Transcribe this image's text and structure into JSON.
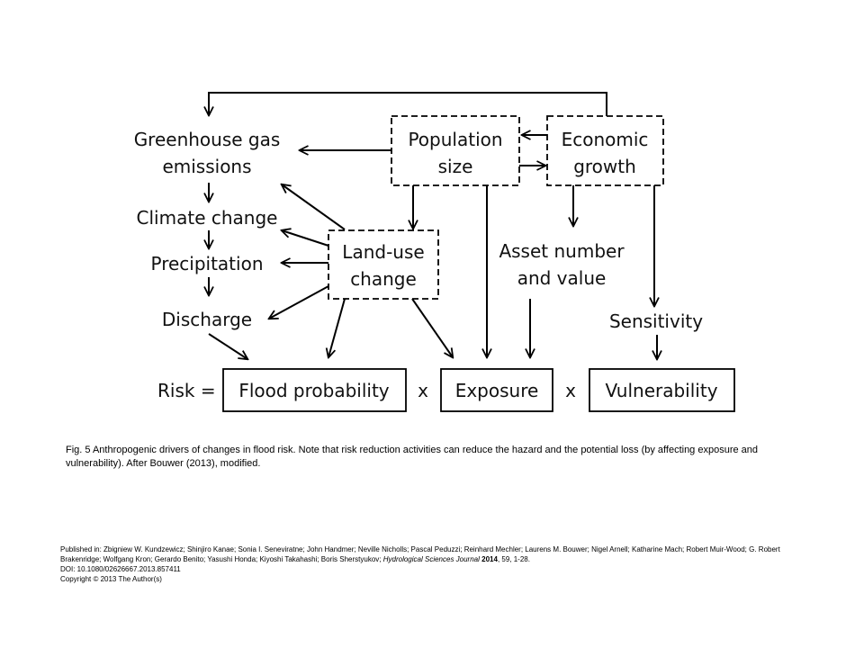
{
  "diagram": {
    "nodes": {
      "ghg_line1": "Greenhouse gas",
      "ghg_line2": "emissions",
      "climate": "Climate change",
      "precip": "Precipitation",
      "discharge": "Discharge",
      "pop_line1": "Population",
      "pop_line2": "size",
      "econ_line1": "Economic",
      "econ_line2": "growth",
      "landuse_line1": "Land-use",
      "landuse_line2": "change",
      "asset_line1": "Asset number",
      "asset_line2": "and value",
      "sensitivity": "Sensitivity",
      "risk": "Risk =",
      "flood": "Flood probability",
      "times1": "x",
      "exposure": "Exposure",
      "times2": "x",
      "vulnerability": "Vulnerability"
    }
  },
  "caption": "Fig. 5 Anthropogenic drivers of changes in flood risk. Note that risk reduction activities can reduce the hazard and the potential loss (by affecting exposure and vulnerability). After Bouwer (2013), modified.",
  "publication": {
    "prefix": "Published in:",
    "authors": "Zbigniew W. Kundzewicz; Shinjiro Kanae; Sonia I. Seneviratne; John Handmer; Neville Nicholls; Pascal Peduzzi; Reinhard Mechler; Laurens M. Bouwer; Nigel Arnell; Katharine Mach; Robert Muir-Wood; G. Robert Brakenridge; Wolfgang Kron; Gerardo Benito; Yasushi Honda; Kiyoshi Takahashi; Boris Sherstyukov;",
    "journal": "Hydrological Sciences Journal",
    "year": "2014",
    "volume": ", 59, 1-28.",
    "doi": "DOI: 10.1080/02626667.2013.857411",
    "copyright": "Copyright © 2013 The Author(s)"
  }
}
